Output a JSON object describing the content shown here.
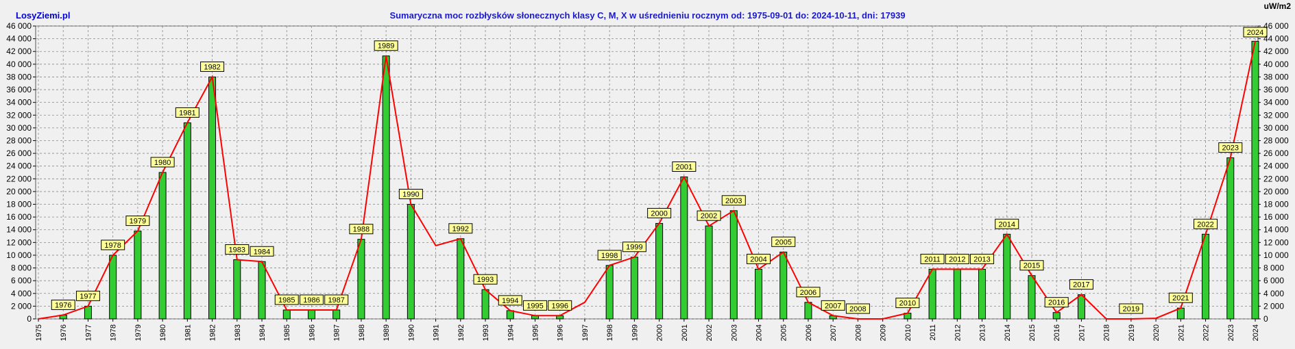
{
  "site": "LosyZiemi.pl",
  "unit": "uW/m2",
  "chart_data": {
    "type": "bar",
    "title": "Sumaryczna moc rozbłysków słonecznych klasy C, M, X w uśrednieniu rocznym od: 1975-09-01 do: 2024-10-11, dni: 17939",
    "ylim": [
      0,
      46000
    ],
    "yticks": [
      "0",
      "2 000",
      "4 000",
      "6 000",
      "8 000",
      "10 000",
      "12 000",
      "14 000",
      "16 000",
      "18 000",
      "20 000",
      "22 000",
      "24 000",
      "26 000",
      "28 000",
      "30 000",
      "32 000",
      "34 000",
      "36 000",
      "38 000",
      "40 000",
      "42 000",
      "44 000",
      "46 000"
    ],
    "grid": true,
    "categories": [
      "1975",
      "1976",
      "1977",
      "1978",
      "1979",
      "1980",
      "1981",
      "1982",
      "1983",
      "1984",
      "1985",
      "1986",
      "1987",
      "1988",
      "1989",
      "1990",
      "1991",
      "1992",
      "1993",
      "1994",
      "1995",
      "1996",
      "1997",
      "1998",
      "1999",
      "2000",
      "2001",
      "2002",
      "2003",
      "2004",
      "2005",
      "2006",
      "2007",
      "2008",
      "2009",
      "2010",
      "2011",
      "2012",
      "2013",
      "2014",
      "2015",
      "2016",
      "2017",
      "2018",
      "2019",
      "2020",
      "2021",
      "2022",
      "2023",
      "2024"
    ],
    "series": [
      {
        "type": "bar",
        "color": "#33cc33",
        "values": [
          0,
          600,
          2000,
          10000,
          13800,
          23000,
          30800,
          38000,
          9300,
          9000,
          1400,
          1400,
          1400,
          12500,
          41300,
          18000,
          0,
          12600,
          4600,
          1300,
          500,
          500,
          0,
          8400,
          9700,
          15000,
          22300,
          14600,
          17000,
          7800,
          10500,
          2600,
          500,
          0,
          0,
          900,
          7800,
          7800,
          7800,
          13300,
          6800,
          1000,
          3800,
          0,
          0,
          0,
          1700,
          13300,
          25300,
          43600
        ]
      },
      {
        "type": "line",
        "color": "#ff0000",
        "values": [
          0,
          600,
          2000,
          10000,
          13800,
          23000,
          30800,
          38000,
          9300,
          9000,
          1400,
          1400,
          1400,
          12500,
          41300,
          18000,
          11500,
          12600,
          4600,
          1300,
          500,
          500,
          2600,
          8400,
          9700,
          15000,
          22300,
          14600,
          17000,
          7800,
          10500,
          2600,
          500,
          0,
          0,
          900,
          7800,
          7800,
          7800,
          13300,
          6800,
          1000,
          3800,
          0,
          0,
          100,
          1700,
          13300,
          25300,
          43600
        ]
      }
    ],
    "labels": [
      "1976",
      "1977",
      "1978",
      "1979",
      "1980",
      "1981",
      "1982",
      "1983",
      "1984",
      "1985",
      "1986",
      "1987",
      "1988",
      "1989",
      "1990",
      "1992",
      "1993",
      "1994",
      "1995",
      "1996",
      "1998",
      "1999",
      "2000",
      "2001",
      "2002",
      "2003",
      "2004",
      "2005",
      "2006",
      "2007",
      "2008",
      "2010",
      "2011",
      "2012",
      "2013",
      "2014",
      "2015",
      "2016",
      "2017",
      "2019",
      "2021",
      "2022",
      "2023",
      "2024"
    ],
    "label_color": "#ffff99"
  }
}
